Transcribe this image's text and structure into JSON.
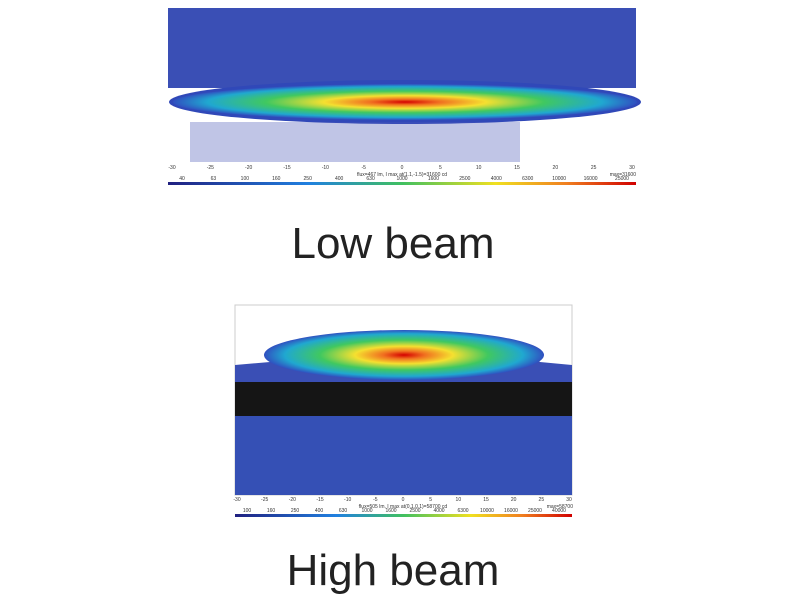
{
  "panels": [
    {
      "label": "Low beam",
      "x_ticks": [
        "-30",
        "-25",
        "-20",
        "-15",
        "-10",
        "-5",
        "0",
        "5",
        "10",
        "15",
        "20",
        "25",
        "30"
      ],
      "caption": "flux=467 lm, I max at(1.1,-1.5)=31600 cd",
      "max": "max=31600",
      "scale_labels": [
        "40",
        "63",
        "100",
        "160",
        "250",
        "400",
        "630",
        "1000",
        "1600",
        "2500",
        "4000",
        "6300",
        "10000",
        "16000",
        "25000"
      ]
    },
    {
      "label": "High beam",
      "x_ticks": [
        "-30",
        "-25",
        "-20",
        "-15",
        "-10",
        "-5",
        "0",
        "5",
        "10",
        "15",
        "20",
        "25",
        "30"
      ],
      "caption": "flux=505 lm, I max at(0.1,0.1)=58700 cd",
      "max": "max=58700",
      "scale_labels": [
        "100",
        "160",
        "250",
        "400",
        "630",
        "1000",
        "1600",
        "2500",
        "4000",
        "6300",
        "10000",
        "16000",
        "25000",
        "40000"
      ]
    }
  ]
}
